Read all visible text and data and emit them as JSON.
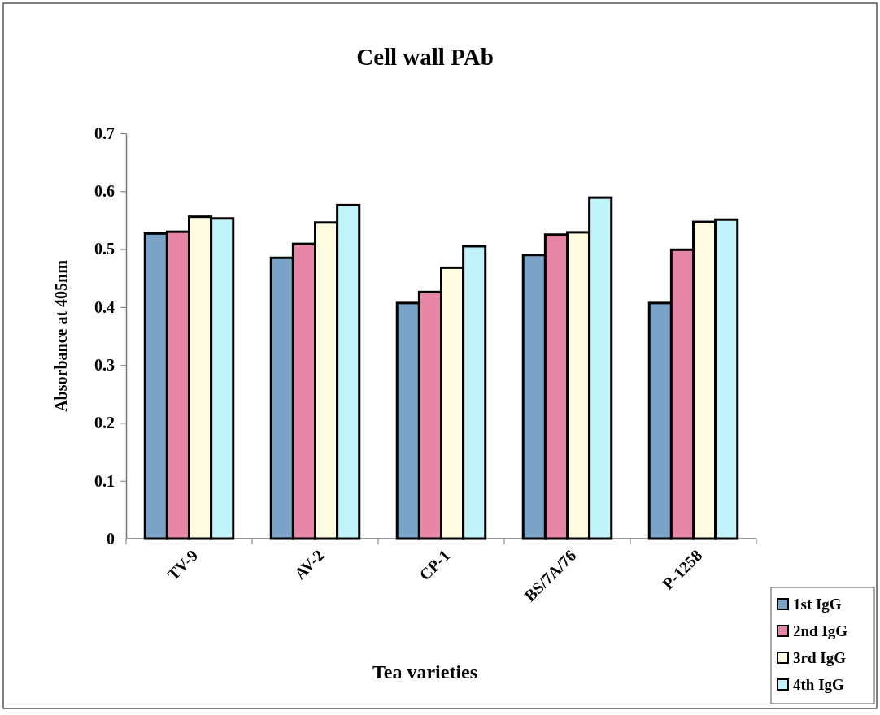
{
  "chart_data": {
    "type": "bar",
    "title": "Cell wall PAb",
    "xlabel": "Tea varieties",
    "ylabel": "Absorbance at 405nm",
    "categories": [
      "TV-9",
      "AV-2",
      "CP-1",
      "BS/7A/76",
      "P-1258"
    ],
    "series": [
      {
        "name": "1st IgG",
        "color": "#7ba3c8",
        "values": [
          0.527,
          0.485,
          0.407,
          0.49,
          0.407
        ]
      },
      {
        "name": "2nd IgG",
        "color": "#e685a5",
        "values": [
          0.53,
          0.509,
          0.426,
          0.525,
          0.499
        ]
      },
      {
        "name": "3rd IgG",
        "color": "#fffbe0",
        "values": [
          0.556,
          0.546,
          0.468,
          0.529,
          0.547
        ]
      },
      {
        "name": "4th IgG",
        "color": "#c0f4fa",
        "values": [
          0.553,
          0.576,
          0.505,
          0.589,
          0.551
        ]
      }
    ],
    "ylim": [
      0,
      0.7
    ],
    "yticks": [
      0,
      0.1,
      0.2,
      0.3,
      0.4,
      0.5,
      0.6,
      0.7
    ],
    "grid": false,
    "legend": "bottom right"
  }
}
